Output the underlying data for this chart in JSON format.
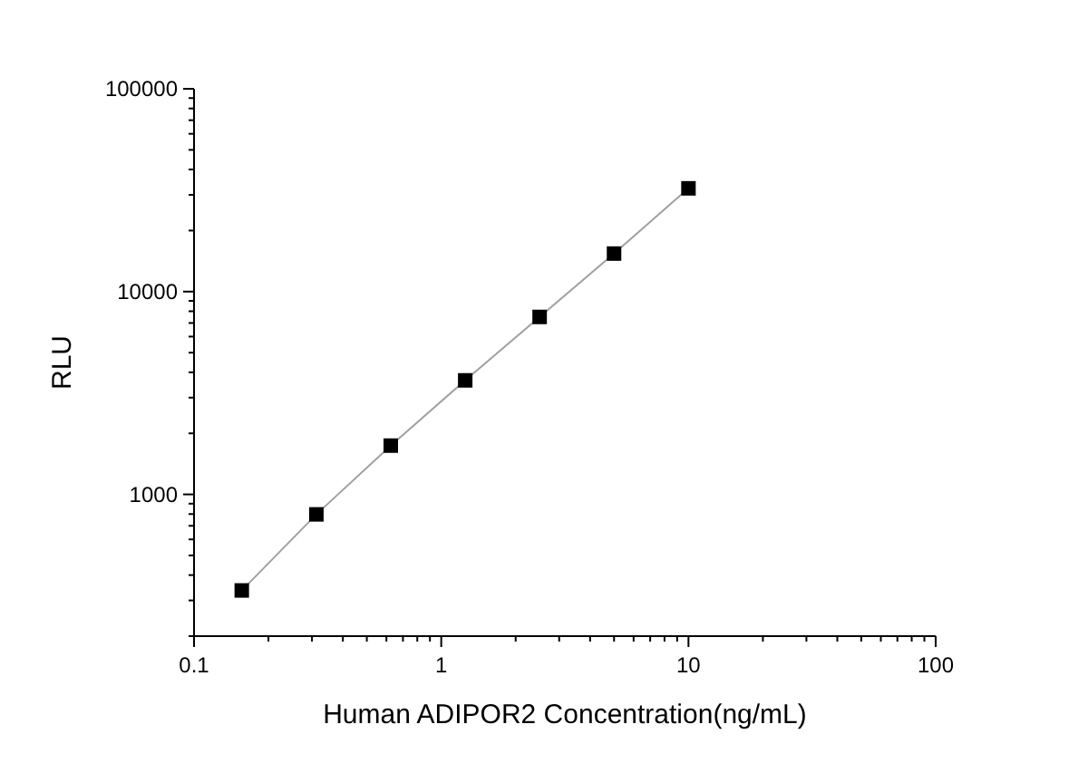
{
  "chart_data": {
    "type": "line",
    "xlabel": "Human ADIPOR2 Concentration(ng/mL)",
    "ylabel": "RLU",
    "log": "xy",
    "marker": "square",
    "line_style": "solid",
    "series": [
      {
        "color": "#000000",
        "x": [
          0.156,
          0.3125,
          0.625,
          1.25,
          2.5,
          5,
          10
        ],
        "values": [
          336,
          797,
          1740,
          3650,
          7500,
          15400,
          32300
        ]
      }
    ],
    "xlim": [
      0.1,
      100
    ],
    "xticks": [
      0.1,
      1,
      10,
      100
    ],
    "ylim": [
      200,
      100000
    ],
    "yticks": [
      1000,
      10000,
      100000
    ]
  }
}
